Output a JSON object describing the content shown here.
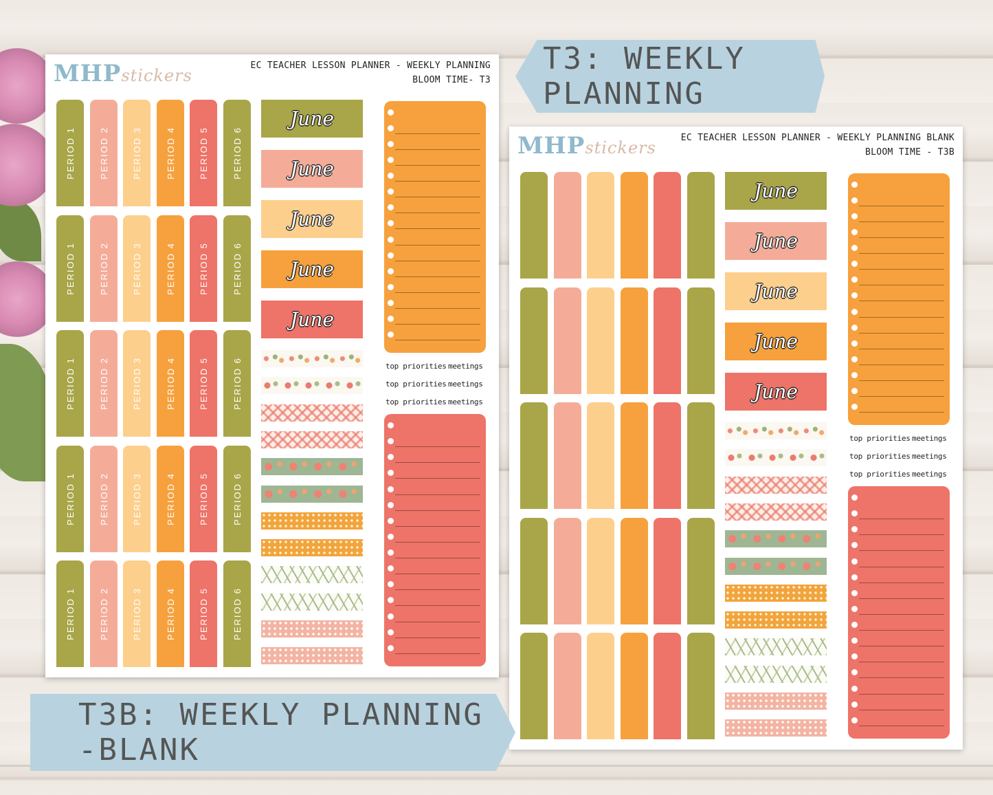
{
  "sheet_t3": {
    "logo_main": "MHP",
    "logo_script": "stickers",
    "header_line1": "EC TEACHER LESSON PLANNER - WEEKLY PLANNING",
    "header_line2": "BLOOM TIME- T3",
    "tab_labels": [
      "PERIOD 1",
      "PERIOD 2",
      "PERIOD 3",
      "PERIOD 4",
      "PERIOD 5",
      "PERIOD 6"
    ],
    "month_label": "June",
    "priority_label": "top priorities",
    "meetings_label": "meetings"
  },
  "sheet_t3b": {
    "logo_main": "MHP",
    "logo_script": "stickers",
    "header_line1": "EC TEACHER LESSON PLANNER - WEEKLY PLANNING BLANK",
    "header_line2": "BLOOM TIME - T3B",
    "month_label": "June",
    "priority_label": "top priorities",
    "meetings_label": "meetings"
  },
  "banners": {
    "t3": "T3: WEEKLY PLANNING",
    "t3b": "T3B: WEEKLY PLANNING -BLANK"
  },
  "colors": {
    "olive": "#a8a648",
    "pink": "#f4ac99",
    "light_orange": "#fdcf8c",
    "orange": "#f6a13d",
    "coral": "#ee7368",
    "banner": "#b8d3df"
  }
}
